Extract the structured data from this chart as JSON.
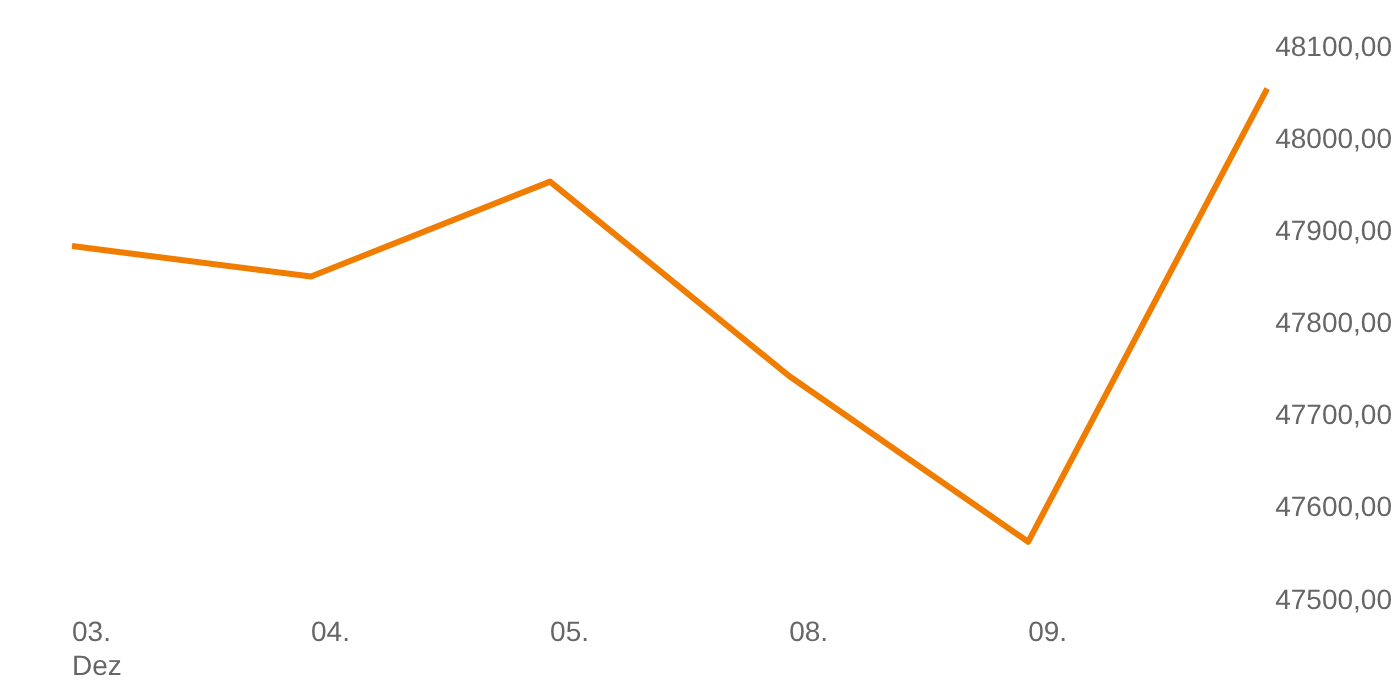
{
  "chart_data": {
    "type": "line",
    "categories": [
      "03.\nDez",
      "04.",
      "05.",
      "08.",
      "09.",
      null
    ],
    "series": [
      {
        "color": "#f07d00",
        "values": [
          47885,
          47852,
          47955,
          47744,
          47564,
          48056
        ]
      }
    ],
    "ylim": [
      47500,
      48100
    ],
    "yticks": [
      {
        "value": 47500,
        "label": "47500,00"
      },
      {
        "value": 47600,
        "label": "47600,00"
      },
      {
        "value": 47700,
        "label": "47700,00"
      },
      {
        "value": 47800,
        "label": "47800,00"
      },
      {
        "value": 47900,
        "label": "47900,00"
      },
      {
        "value": 48000,
        "label": "48000,00"
      },
      {
        "value": 48100,
        "label": "48100,00"
      }
    ],
    "grid": false,
    "legend": false,
    "marker": "none",
    "line_style": "solid"
  }
}
